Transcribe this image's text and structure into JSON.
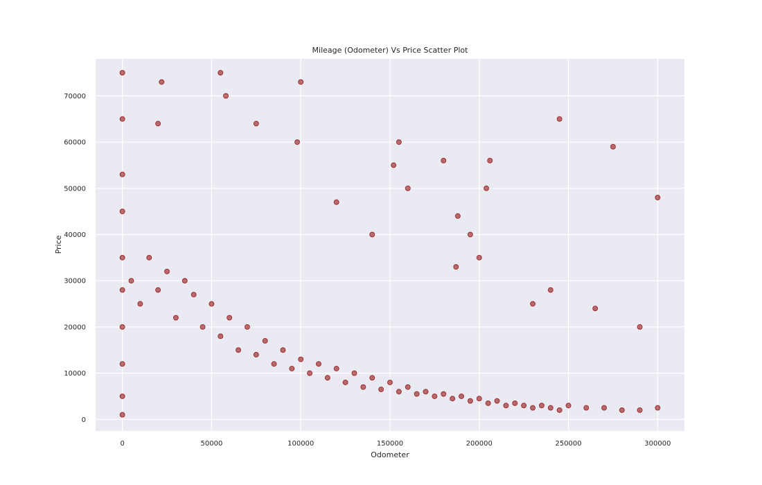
{
  "chart_data": {
    "type": "scatter",
    "title": "Mileage (Odometer) Vs Price Scatter Plot",
    "xlabel": "Odometer",
    "ylabel": "Price",
    "xlim": [
      -15000,
      315000
    ],
    "ylim": [
      -2500,
      78000
    ],
    "xticks": [
      0,
      50000,
      100000,
      150000,
      200000,
      250000,
      300000
    ],
    "yticks": [
      0,
      10000,
      20000,
      30000,
      40000,
      50000,
      60000,
      70000
    ],
    "xtick_labels": [
      "0",
      "50000",
      "100000",
      "150000",
      "200000",
      "250000",
      "300000"
    ],
    "ytick_labels": [
      "0",
      "10000",
      "20000",
      "30000",
      "40000",
      "50000",
      "60000",
      "70000"
    ],
    "grid": true,
    "marker_color": "#8b0000",
    "background_color": "#eaeaf2",
    "point_alpha": 0.08,
    "points": [
      [
        0,
        1000
      ],
      [
        0,
        5000
      ],
      [
        0,
        12000
      ],
      [
        0,
        20000
      ],
      [
        0,
        28000
      ],
      [
        0,
        35000
      ],
      [
        0,
        45000
      ],
      [
        0,
        53000
      ],
      [
        0,
        65000
      ],
      [
        0,
        75000
      ],
      [
        5000,
        30000
      ],
      [
        10000,
        25000
      ],
      [
        15000,
        35000
      ],
      [
        20000,
        28000
      ],
      [
        25000,
        32000
      ],
      [
        30000,
        22000
      ],
      [
        35000,
        30000
      ],
      [
        40000,
        27000
      ],
      [
        45000,
        20000
      ],
      [
        50000,
        25000
      ],
      [
        55000,
        18000
      ],
      [
        60000,
        22000
      ],
      [
        65000,
        15000
      ],
      [
        70000,
        20000
      ],
      [
        75000,
        14000
      ],
      [
        80000,
        17000
      ],
      [
        85000,
        12000
      ],
      [
        90000,
        15000
      ],
      [
        95000,
        11000
      ],
      [
        100000,
        13000
      ],
      [
        105000,
        10000
      ],
      [
        110000,
        12000
      ],
      [
        115000,
        9000
      ],
      [
        120000,
        11000
      ],
      [
        125000,
        8000
      ],
      [
        130000,
        10000
      ],
      [
        135000,
        7000
      ],
      [
        140000,
        9000
      ],
      [
        145000,
        6500
      ],
      [
        150000,
        8000
      ],
      [
        155000,
        6000
      ],
      [
        160000,
        7000
      ],
      [
        165000,
        5500
      ],
      [
        170000,
        6000
      ],
      [
        175000,
        5000
      ],
      [
        180000,
        5500
      ],
      [
        185000,
        4500
      ],
      [
        190000,
        5000
      ],
      [
        195000,
        4000
      ],
      [
        200000,
        4500
      ],
      [
        205000,
        3500
      ],
      [
        210000,
        4000
      ],
      [
        215000,
        3000
      ],
      [
        220000,
        3500
      ],
      [
        225000,
        3000
      ],
      [
        230000,
        2500
      ],
      [
        235000,
        3000
      ],
      [
        240000,
        2500
      ],
      [
        245000,
        2000
      ],
      [
        250000,
        3000
      ],
      [
        260000,
        2500
      ],
      [
        270000,
        2500
      ],
      [
        280000,
        2000
      ],
      [
        290000,
        2000
      ],
      [
        300000,
        2500
      ],
      [
        20000,
        64000
      ],
      [
        22000,
        73000
      ],
      [
        55000,
        75000
      ],
      [
        58000,
        70000
      ],
      [
        75000,
        64000
      ],
      [
        98000,
        60000
      ],
      [
        100000,
        73000
      ],
      [
        120000,
        47000
      ],
      [
        140000,
        40000
      ],
      [
        152000,
        55000
      ],
      [
        155000,
        60000
      ],
      [
        160000,
        50000
      ],
      [
        180000,
        56000
      ],
      [
        187000,
        33000
      ],
      [
        188000,
        44000
      ],
      [
        195000,
        40000
      ],
      [
        200000,
        35000
      ],
      [
        204000,
        50000
      ],
      [
        206000,
        56000
      ],
      [
        230000,
        25000
      ],
      [
        245000,
        65000
      ],
      [
        275000,
        59000
      ],
      [
        300000,
        48000
      ],
      [
        240000,
        28000
      ],
      [
        265000,
        24000
      ],
      [
        290000,
        20000
      ]
    ]
  }
}
